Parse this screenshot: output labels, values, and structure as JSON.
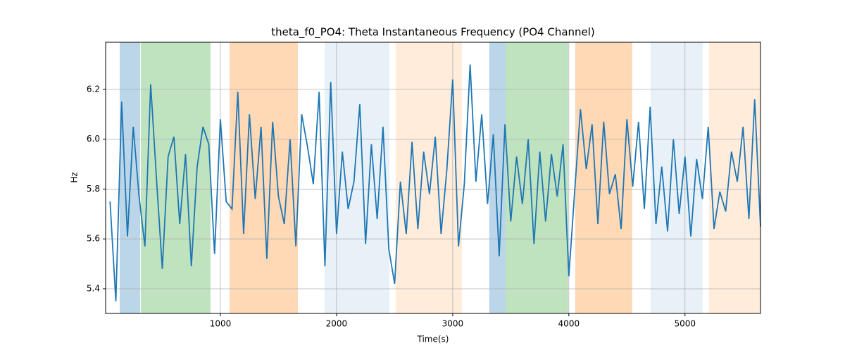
{
  "chart_data": {
    "type": "line",
    "title": "theta_f0_PO4: Theta Instantaneous Frequency (PO4 Channel)",
    "x_label": "Time(s)",
    "y_label": "Hz",
    "xlim": [
      12,
      5650
    ],
    "ylim": [
      5.301,
      6.389
    ],
    "xticks": [
      1000,
      2000,
      3000,
      4000,
      5000
    ],
    "yticks": [
      5.4,
      5.6,
      5.8,
      {
        "value": 6,
        "label": "6.0"
      },
      6.2
    ],
    "grid": true,
    "spans": [
      {
        "start": 133,
        "end": 309,
        "color": "#1f77b4",
        "alpha": 0.3
      },
      {
        "start": 315,
        "end": 915,
        "color": "#2ca02c",
        "alpha": 0.3
      },
      {
        "start": 1079,
        "end": 1667,
        "color": "#ff7f0e",
        "alpha": 0.3
      },
      {
        "start": 1897,
        "end": 2455,
        "color": "#1f77b4",
        "alpha": 0.1
      },
      {
        "start": 2509,
        "end": 3079,
        "color": "#ff7f0e",
        "alpha": 0.15
      },
      {
        "start": 3315,
        "end": 3455,
        "color": "#1f77b4",
        "alpha": 0.3
      },
      {
        "start": 3455,
        "end": 3994,
        "color": "#2ca02c",
        "alpha": 0.3
      },
      {
        "start": 4055,
        "end": 4545,
        "color": "#ff7f0e",
        "alpha": 0.3
      },
      {
        "start": 4703,
        "end": 5152,
        "color": "#1f77b4",
        "alpha": 0.1
      },
      {
        "start": 5206,
        "end": 5650,
        "color": "#ff7f0e",
        "alpha": 0.15
      }
    ],
    "x": [
      50,
      100,
      150,
      200,
      250,
      300,
      350,
      400,
      450,
      500,
      550,
      600,
      650,
      700,
      750,
      800,
      850,
      900,
      950,
      1000,
      1050,
      1100,
      1150,
      1200,
      1250,
      1300,
      1350,
      1400,
      1450,
      1500,
      1550,
      1600,
      1650,
      1700,
      1750,
      1800,
      1850,
      1900,
      1950,
      2000,
      2050,
      2100,
      2150,
      2200,
      2250,
      2300,
      2350,
      2400,
      2450,
      2500,
      2550,
      2600,
      2650,
      2700,
      2750,
      2800,
      2850,
      2900,
      2950,
      3000,
      3050,
      3100,
      3150,
      3200,
      3250,
      3300,
      3350,
      3400,
      3450,
      3500,
      3550,
      3600,
      3650,
      3700,
      3750,
      3800,
      3850,
      3900,
      3950,
      4000,
      4050,
      4100,
      4150,
      4200,
      4250,
      4300,
      4350,
      4400,
      4450,
      4500,
      4550,
      4600,
      4650,
      4700,
      4750,
      4800,
      4850,
      4900,
      4950,
      5000,
      5050,
      5100,
      5150,
      5200,
      5250,
      5300,
      5350,
      5400,
      5450,
      5500,
      5550,
      5600,
      5650
    ],
    "series": [
      {
        "color": "#1f77b4",
        "values": [
          5.75,
          5.35,
          6.15,
          5.61,
          6.05,
          5.77,
          5.57,
          6.22,
          5.84,
          5.48,
          5.93,
          6.01,
          5.66,
          5.94,
          5.49,
          5.89,
          6.05,
          5.98,
          5.54,
          6.08,
          5.75,
          5.72,
          6.19,
          5.62,
          6.1,
          5.76,
          6.05,
          5.52,
          6.07,
          5.77,
          5.66,
          6.0,
          5.57,
          6.1,
          5.97,
          5.82,
          6.19,
          5.49,
          6.23,
          5.62,
          5.95,
          5.72,
          5.83,
          6.14,
          5.58,
          5.98,
          5.68,
          6.05,
          5.56,
          5.42,
          5.83,
          5.62,
          5.99,
          5.64,
          5.95,
          5.78,
          6.01,
          5.62,
          5.88,
          6.24,
          5.57,
          5.82,
          6.3,
          5.83,
          6.1,
          5.74,
          6.02,
          5.53,
          6.06,
          5.67,
          5.93,
          5.74,
          6.0,
          5.58,
          5.95,
          5.67,
          5.94,
          5.77,
          5.98,
          5.45,
          5.79,
          6.12,
          5.88,
          6.06,
          5.66,
          6.07,
          5.78,
          5.86,
          5.64,
          6.08,
          5.81,
          6.07,
          5.72,
          6.13,
          5.66,
          5.89,
          5.63,
          6.0,
          5.7,
          5.93,
          5.61,
          5.92,
          5.76,
          6.05,
          5.64,
          5.79,
          5.71,
          5.95,
          5.83,
          6.05,
          5.68,
          6.16,
          5.65
        ]
      }
    ]
  }
}
